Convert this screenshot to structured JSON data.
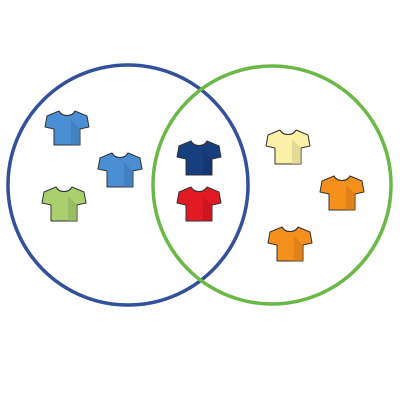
{
  "diagram": {
    "type": "venn",
    "sets": [
      {
        "id": "left",
        "circle_color": "#34509a"
      },
      {
        "id": "right",
        "circle_color": "#6ab845"
      }
    ],
    "shirts": [
      {
        "id": "shirt-1",
        "region": "left-only",
        "color_name": "blue",
        "color": "#4a8fd4"
      },
      {
        "id": "shirt-2",
        "region": "left-only",
        "color_name": "blue",
        "color": "#4a8fd4"
      },
      {
        "id": "shirt-3",
        "region": "left-only",
        "color_name": "green",
        "color": "#a9d06c"
      },
      {
        "id": "shirt-4",
        "region": "intersection",
        "color_name": "navy",
        "color": "#173e7e"
      },
      {
        "id": "shirt-5",
        "region": "intersection",
        "color_name": "red",
        "color": "#e21a23"
      },
      {
        "id": "shirt-6",
        "region": "right-only",
        "color_name": "yellow",
        "color": "#fbf1a6"
      },
      {
        "id": "shirt-7",
        "region": "right-only",
        "color_name": "orange",
        "color": "#f5901d"
      },
      {
        "id": "shirt-8",
        "region": "right-only",
        "color_name": "orange",
        "color": "#f5901d"
      }
    ],
    "icon": "t-shirt-icon"
  }
}
